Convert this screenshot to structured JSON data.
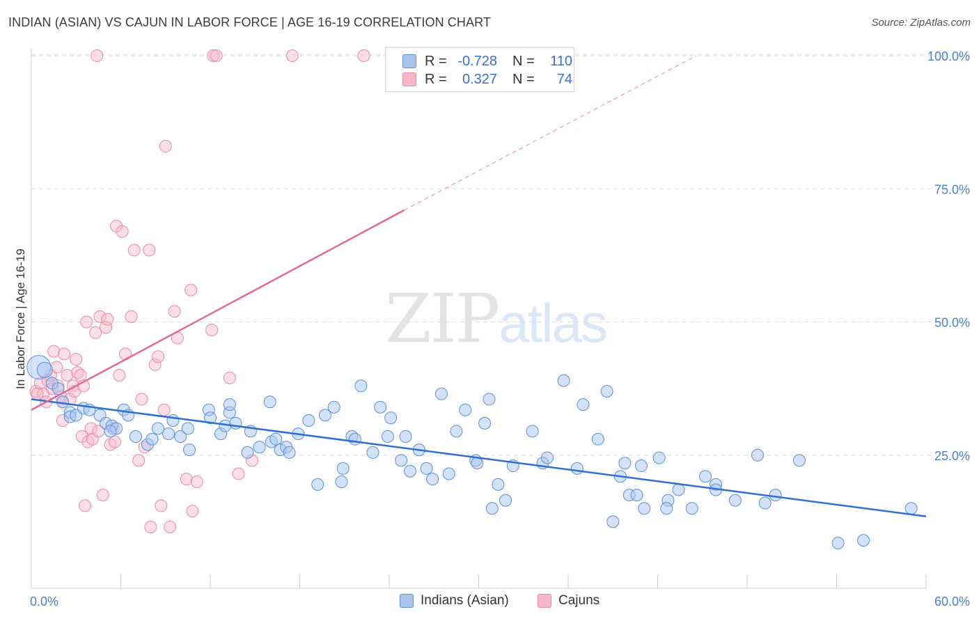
{
  "title": "INDIAN (ASIAN) VS CAJUN IN LABOR FORCE | AGE 16-19 CORRELATION CHART",
  "source": "Source: ZipAtlas.com",
  "watermark": {
    "zip": "ZIP",
    "atlas": "atlas"
  },
  "legend": {
    "r_label": "R =",
    "n_label": "N =",
    "rows": [
      {
        "r": "-0.728",
        "n": "110"
      },
      {
        "r": "0.327",
        "n": "74"
      }
    ]
  },
  "bottom_legend": [
    "Indians (Asian)",
    "Cajuns"
  ],
  "colors": {
    "indian_fill": "#a9c6ef",
    "indian_stroke": "#5a8fd8",
    "indian_line": "#2f6fd1",
    "cajun_fill": "#f6b7c9",
    "cajun_stroke": "#e88aa6",
    "cajun_line": "#e06a93",
    "tick_text": "#4a7fd1",
    "grid": "#dedede"
  },
  "chart_data": {
    "type": "scatter",
    "title": "INDIAN (ASIAN) VS CAJUN IN LABOR FORCE | AGE 16-19 CORRELATION CHART",
    "xlabel": "",
    "ylabel": "In Labor Force | Age 16-19",
    "xlim": [
      0,
      60
    ],
    "ylim": [
      0,
      102
    ],
    "x_tick_labels": [
      "0.0%",
      "60.0%"
    ],
    "y_ticks": [
      25,
      50,
      75,
      100
    ],
    "y_tick_labels": [
      "25.0%",
      "50.0%",
      "75.0%",
      "100.0%"
    ],
    "grid": "horizontal dashed",
    "legend_position": "top-center",
    "series": [
      {
        "name": "Indians (Asian)",
        "r": -0.728,
        "n": 110,
        "trend": {
          "x0": 0,
          "y0": 35.5,
          "x1": 60,
          "y1": 13.5
        },
        "points": [
          [
            0.5,
            41.5
          ],
          [
            0.9,
            41
          ],
          [
            1.4,
            38.5
          ],
          [
            1.8,
            37.5
          ],
          [
            2.1,
            35
          ],
          [
            2.6,
            33
          ],
          [
            2.6,
            32.2
          ],
          [
            3.0,
            32.5
          ],
          [
            3.5,
            33.8
          ],
          [
            3.9,
            33.5
          ],
          [
            4.6,
            32.5
          ],
          [
            5.0,
            31
          ],
          [
            5.4,
            30.5
          ],
          [
            5.7,
            30
          ],
          [
            5.3,
            29.5
          ],
          [
            6.2,
            33.5
          ],
          [
            6.5,
            32.5
          ],
          [
            7.0,
            28.5
          ],
          [
            7.8,
            27
          ],
          [
            8.1,
            28
          ],
          [
            8.5,
            30
          ],
          [
            9.2,
            29
          ],
          [
            9.5,
            31.5
          ],
          [
            10.0,
            28.5
          ],
          [
            10.5,
            30
          ],
          [
            10.6,
            26
          ],
          [
            11.9,
            33.5
          ],
          [
            12.0,
            32
          ],
          [
            12.7,
            29
          ],
          [
            13.0,
            30.5
          ],
          [
            13.3,
            33
          ],
          [
            13.3,
            34.5
          ],
          [
            13.7,
            31
          ],
          [
            14.5,
            25.5
          ],
          [
            14.7,
            29.5
          ],
          [
            15.3,
            26.5
          ],
          [
            16.0,
            35
          ],
          [
            16.1,
            27.5
          ],
          [
            16.4,
            28
          ],
          [
            16.7,
            26
          ],
          [
            17.1,
            26.5
          ],
          [
            17.3,
            25.5
          ],
          [
            17.9,
            29
          ],
          [
            18.6,
            31.5
          ],
          [
            19.2,
            19.5
          ],
          [
            19.7,
            32.5
          ],
          [
            20.3,
            34
          ],
          [
            20.8,
            20
          ],
          [
            20.9,
            22.5
          ],
          [
            21.5,
            28.5
          ],
          [
            21.7,
            28
          ],
          [
            22.1,
            38
          ],
          [
            22.9,
            25.5
          ],
          [
            23.4,
            34
          ],
          [
            23.9,
            28.5
          ],
          [
            24.1,
            32
          ],
          [
            24.8,
            24
          ],
          [
            25.1,
            28.5
          ],
          [
            25.4,
            22
          ],
          [
            26.0,
            26
          ],
          [
            26.5,
            22.5
          ],
          [
            26.9,
            20.5
          ],
          [
            27.5,
            36.5
          ],
          [
            28.0,
            21.5
          ],
          [
            28.5,
            29.5
          ],
          [
            29.1,
            33.5
          ],
          [
            29.8,
            24
          ],
          [
            29.9,
            23.5
          ],
          [
            30.4,
            31
          ],
          [
            30.7,
            35.5
          ],
          [
            30.9,
            15
          ],
          [
            31.3,
            19.5
          ],
          [
            31.8,
            16.5
          ],
          [
            32.3,
            23
          ],
          [
            33.6,
            29.5
          ],
          [
            34.3,
            23.5
          ],
          [
            34.6,
            24.5
          ],
          [
            35.7,
            39
          ],
          [
            36.6,
            22.5
          ],
          [
            37.0,
            34.5
          ],
          [
            38.0,
            28
          ],
          [
            38.6,
            37
          ],
          [
            39.0,
            12.5
          ],
          [
            39.5,
            21
          ],
          [
            39.8,
            23.5
          ],
          [
            40.1,
            17.5
          ],
          [
            40.6,
            17.5
          ],
          [
            40.9,
            23
          ],
          [
            41.1,
            15
          ],
          [
            42.1,
            24.5
          ],
          [
            42.7,
            16.5
          ],
          [
            42.6,
            15
          ],
          [
            43.4,
            18.5
          ],
          [
            44.3,
            15
          ],
          [
            45.2,
            21
          ],
          [
            45.9,
            19.5
          ],
          [
            45.9,
            18.5
          ],
          [
            47.2,
            16.5
          ],
          [
            48.7,
            25
          ],
          [
            49.2,
            16
          ],
          [
            49.9,
            17.5
          ],
          [
            51.5,
            24
          ],
          [
            54.1,
            8.5
          ],
          [
            55.8,
            9
          ],
          [
            59.0,
            15
          ]
        ]
      },
      {
        "name": "Cajuns",
        "r": 0.327,
        "n": 74,
        "trend_solid": {
          "x0": 0,
          "y0": 33.5,
          "x1": 25,
          "y1": 71
        },
        "trend_dashed": {
          "x0": 25,
          "y0": 71,
          "x1": 44.6,
          "y1": 100
        },
        "points": [
          [
            0.3,
            37
          ],
          [
            0.6,
            38.5
          ],
          [
            0.8,
            36.5
          ],
          [
            1.0,
            35
          ],
          [
            1.1,
            39
          ],
          [
            1.4,
            37.5
          ],
          [
            1.5,
            44.5
          ],
          [
            1.7,
            41.5
          ],
          [
            1.8,
            38
          ],
          [
            2.0,
            36
          ],
          [
            2.1,
            31.5
          ],
          [
            2.2,
            44
          ],
          [
            2.4,
            40
          ],
          [
            2.6,
            35.5
          ],
          [
            2.8,
            38
          ],
          [
            2.9,
            37
          ],
          [
            3.0,
            43
          ],
          [
            3.1,
            40.5
          ],
          [
            3.3,
            40
          ],
          [
            3.4,
            28.5
          ],
          [
            3.6,
            15.5
          ],
          [
            3.7,
            50
          ],
          [
            3.8,
            27.5
          ],
          [
            4.0,
            30
          ],
          [
            4.1,
            28
          ],
          [
            4.3,
            48
          ],
          [
            4.5,
            29.5
          ],
          [
            4.6,
            51
          ],
          [
            4.8,
            17.5
          ],
          [
            5.0,
            49
          ],
          [
            5.1,
            50.5
          ],
          [
            5.3,
            27
          ],
          [
            5.5,
            30
          ],
          [
            5.6,
            27.5
          ],
          [
            5.7,
            68
          ],
          [
            5.9,
            40
          ],
          [
            6.1,
            67
          ],
          [
            6.3,
            44
          ],
          [
            6.7,
            51
          ],
          [
            6.9,
            63.5
          ],
          [
            7.2,
            24
          ],
          [
            7.4,
            35.5
          ],
          [
            7.6,
            26.5
          ],
          [
            7.9,
            63.5
          ],
          [
            8.0,
            11.5
          ],
          [
            8.3,
            42
          ],
          [
            8.5,
            43.5
          ],
          [
            8.7,
            15.5
          ],
          [
            8.9,
            33.5
          ],
          [
            9.0,
            83
          ],
          [
            9.3,
            11.5
          ],
          [
            9.6,
            52
          ],
          [
            9.8,
            47
          ],
          [
            10.4,
            20.5
          ],
          [
            10.7,
            56
          ],
          [
            10.8,
            14.5
          ],
          [
            11.1,
            20
          ],
          [
            12.1,
            48.5
          ],
          [
            13.3,
            39.5
          ],
          [
            13.9,
            21.5
          ],
          [
            14.8,
            24
          ],
          [
            4.4,
            100
          ],
          [
            12.2,
            100
          ],
          [
            12.4,
            100
          ],
          [
            17.5,
            100
          ],
          [
            22.3,
            100
          ],
          [
            2.1,
            35
          ],
          [
            3.5,
            38
          ],
          [
            0.4,
            36.5
          ],
          [
            1.3,
            40
          ]
        ]
      }
    ]
  }
}
